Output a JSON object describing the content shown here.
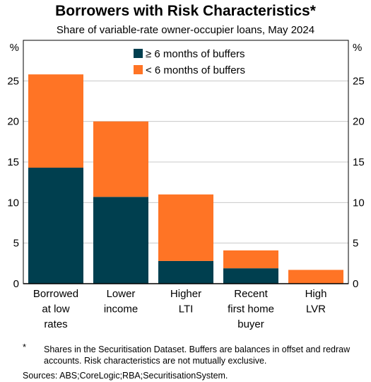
{
  "chart_data": {
    "type": "bar",
    "stacked": true,
    "title": "Borrowers with Risk Characteristics*",
    "subtitle": "Share of variable-rate owner-occupier loans, May 2024",
    "ylabel_left": "%",
    "ylabel_right": "%",
    "ylim": [
      0,
      30
    ],
    "yticks": [
      0,
      5,
      10,
      15,
      20,
      25
    ],
    "grid": true,
    "legend_position": "top-center",
    "categories": [
      [
        "Borrowed",
        "at low",
        "rates"
      ],
      [
        "Lower",
        "income"
      ],
      [
        "Higher",
        "LTI"
      ],
      [
        "Recent",
        "first home",
        "buyer"
      ],
      [
        "High",
        "LVR"
      ]
    ],
    "series": [
      {
        "name": "≥ 6 months of buffers",
        "color": "#003f4f",
        "values": [
          14.3,
          10.7,
          2.8,
          1.9,
          0.0
        ]
      },
      {
        "name": "< 6 months of buffers",
        "color": "#ff7425",
        "values": [
          11.5,
          9.3,
          8.2,
          2.2,
          1.7
        ]
      }
    ]
  },
  "footnote": {
    "marker": "*",
    "text": "Shares in the Securitisation Dataset. Buffers are balances in offset and redraw accounts. Risk characteristics are not mutually exclusive."
  },
  "sources": "Sources: ABS;CoreLogic;RBA;SecuritisationSystem."
}
